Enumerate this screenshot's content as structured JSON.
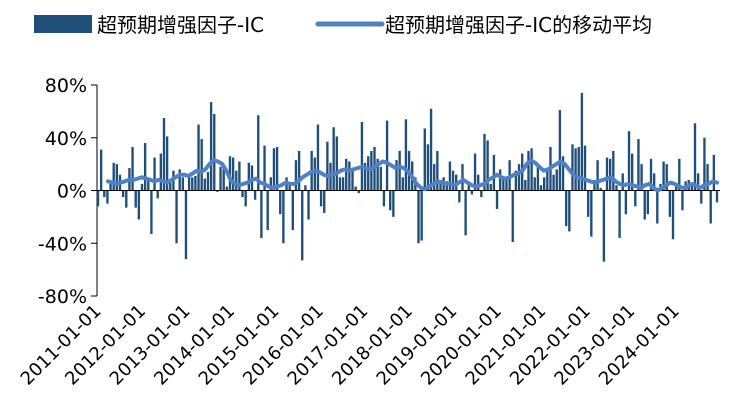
{
  "chart_data": {
    "type": "bar",
    "legend_position": "top",
    "grid": false,
    "ylim": [
      -0.8,
      0.8
    ],
    "y_ticks": [
      "80%",
      "40%",
      "0%",
      "-40%",
      "-80%"
    ],
    "y_tick_values": [
      0.8,
      0.4,
      0.0,
      -0.4,
      -0.8
    ],
    "x_range": [
      "2011-01-01",
      "2024-12-01"
    ],
    "x_ticks": [
      "2011-01-01",
      "2012-01-01",
      "2013-01-01",
      "2014-01-01",
      "2015-01-01",
      "2016-01-01",
      "2017-01-01",
      "2018-01-01",
      "2019-01-01",
      "2020-01-01",
      "2021-01-01",
      "2022-01-01",
      "2023-01-01",
      "2024-01-01"
    ],
    "series": [
      {
        "name": "超预期增强因子-IC",
        "type": "bar",
        "color": "#1f4e79",
        "values": [
          -0.12,
          0.31,
          -0.05,
          -0.1,
          0.05,
          0.21,
          0.2,
          0.12,
          -0.05,
          -0.13,
          0.17,
          0.33,
          -0.13,
          -0.22,
          0.05,
          0.36,
          0.08,
          -0.33,
          0.25,
          -0.06,
          0.28,
          0.55,
          0.41,
          0.06,
          0.15,
          -0.4,
          0.16,
          0.1,
          -0.52,
          0.12,
          0.1,
          0.11,
          0.5,
          0.39,
          0.09,
          0.14,
          0.67,
          0.58,
          -0.01,
          0.18,
          0.2,
          0.03,
          0.26,
          0.25,
          0.15,
          0.22,
          -0.05,
          -0.12,
          0.21,
          0.19,
          -0.07,
          0.57,
          -0.36,
          0.34,
          -0.3,
          0.1,
          0.32,
          0.33,
          -0.18,
          -0.4,
          0.1,
          0.05,
          -0.3,
          0.23,
          0.3,
          -0.53,
          0.04,
          -0.22,
          0.3,
          0.25,
          0.5,
          -0.12,
          -0.17,
          0.37,
          0.21,
          0.48,
          0.41,
          0.1,
          0.1,
          0.24,
          0.22,
          0.15,
          0.03,
          -0.02,
          0.52,
          0.21,
          0.26,
          0.3,
          0.33,
          0.24,
          0.18,
          -0.12,
          0.53,
          -0.15,
          -0.2,
          0.23,
          0.3,
          0.1,
          0.54,
          0.3,
          0.22,
          0.1,
          -0.4,
          -0.38,
          0.47,
          0.35,
          0.62,
          0.2,
          0.3,
          0.08,
          0.1,
          0.07,
          0.22,
          0.15,
          0.12,
          -0.09,
          0.2,
          -0.34,
          0.05,
          -0.03,
          0.28,
          0.12,
          -0.05,
          0.43,
          0.38,
          0.05,
          0.27,
          -0.14,
          0.16,
          0.1,
          0.1,
          0.23,
          -0.39,
          0.15,
          0.2,
          0.28,
          0.08,
          0.3,
          0.32,
          0.1,
          0.18,
          0.04,
          0.1,
          0.15,
          0.33,
          0.12,
          0.16,
          0.61,
          0.26,
          -0.27,
          -0.31,
          0.35,
          0.32,
          0.33,
          0.74,
          0.34,
          -0.2,
          -0.35,
          0.08,
          0.23,
          0.02,
          -0.54,
          0.25,
          0.24,
          0.3,
          0.04,
          -0.36,
          0.13,
          -0.18,
          0.45,
          0.28,
          -0.12,
          0.39,
          0.2,
          -0.22,
          -0.18,
          0.24,
          0.13,
          -0.25,
          0.05,
          0.22,
          0.2,
          -0.2,
          -0.37,
          0.04,
          0.24,
          -0.15,
          0.07,
          0.08,
          0.06,
          0.51,
          0.13,
          -0.1,
          0.4,
          0.2,
          -0.25,
          0.27,
          -0.09
        ]
      },
      {
        "name": "超预期增强因子-IC的移动平均",
        "type": "line",
        "color": "#4f81c7",
        "values": [
          0.07,
          0.06,
          0.05,
          0.06,
          0.07,
          0.08,
          0.08,
          0.09,
          0.1,
          0.09,
          0.08,
          0.07,
          0.08,
          0.07,
          0.06,
          0.08,
          0.1,
          0.12,
          0.12,
          0.11,
          0.13,
          0.15,
          0.14,
          0.16,
          0.2,
          0.23,
          0.22,
          0.2,
          0.15,
          0.08,
          0.05,
          0.04,
          0.05,
          0.06,
          0.08,
          0.09,
          0.06,
          0.05,
          0.03,
          0.02,
          0.03,
          0.04,
          0.06,
          0.05,
          0.05,
          0.07,
          0.1,
          0.12,
          0.14,
          0.15,
          0.14,
          0.12,
          0.11,
          0.12,
          0.13,
          0.15,
          0.16,
          0.15,
          0.16,
          0.17,
          0.18,
          0.17,
          0.16,
          0.18,
          0.2,
          0.22,
          0.21,
          0.19,
          0.17,
          0.18,
          0.17,
          0.14,
          0.1,
          0.05,
          0.02,
          0.01,
          0.03,
          0.05,
          0.07,
          0.06,
          0.05,
          0.05,
          0.04,
          0.06,
          0.08,
          0.06,
          0.04,
          0.03,
          0.04,
          0.05,
          0.08,
          0.1,
          0.12,
          0.1,
          0.09,
          0.1,
          0.12,
          0.13,
          0.15,
          0.2,
          0.23,
          0.21,
          0.18,
          0.15,
          0.16,
          0.18,
          0.2,
          0.22,
          0.2,
          0.16,
          0.12,
          0.1,
          0.09,
          0.08,
          0.07,
          0.06,
          0.07,
          0.08,
          0.09,
          0.1,
          0.07,
          0.05,
          0.04,
          0.05,
          0.04,
          0.03,
          0.02,
          0.04,
          0.05,
          0.02,
          0.0,
          0.02,
          0.04,
          0.06,
          0.05,
          0.03,
          0.02,
          0.03,
          0.05,
          0.04,
          0.02,
          0.04,
          0.05,
          0.07,
          0.06
        ]
      }
    ]
  }
}
